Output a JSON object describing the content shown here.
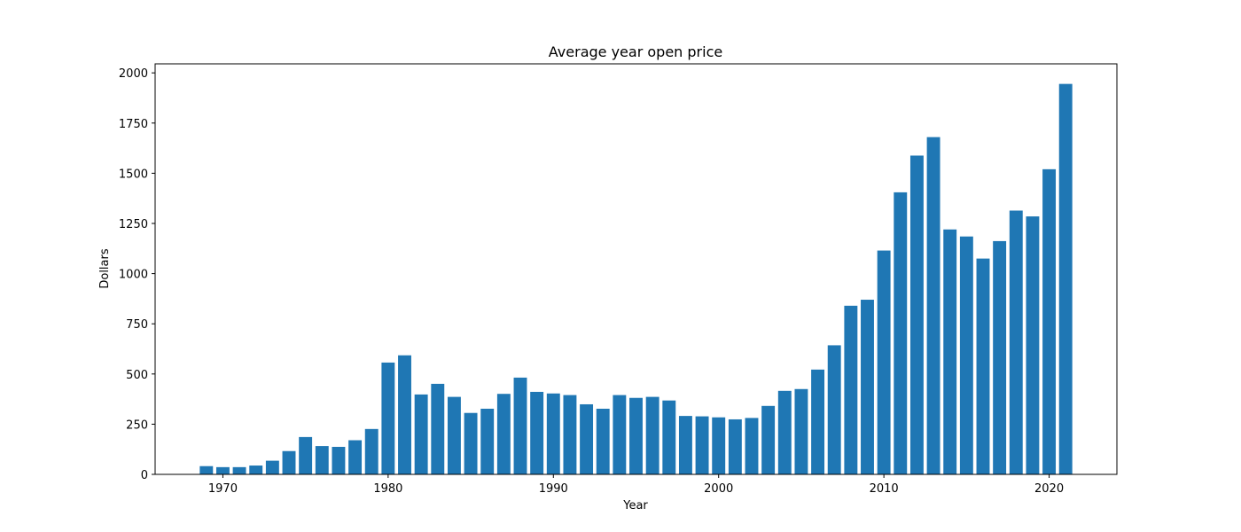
{
  "chart_data": {
    "type": "bar",
    "title": "Average year open price",
    "xlabel": "Year",
    "ylabel": "Dollars",
    "bar_color": "#1f77b4",
    "xlim": [
      1965.9,
      2024.1
    ],
    "ylim": [
      0,
      2045
    ],
    "x_ticks": [
      1970,
      1980,
      1990,
      2000,
      2010,
      2020
    ],
    "y_ticks": [
      0,
      250,
      500,
      750,
      1000,
      1250,
      1500,
      1750,
      2000
    ],
    "grid": false,
    "legend": "none",
    "x": [
      1969,
      1970,
      1971,
      1972,
      1973,
      1974,
      1975,
      1976,
      1977,
      1978,
      1979,
      1980,
      1981,
      1982,
      1983,
      1984,
      1985,
      1986,
      1987,
      1988,
      1989,
      1990,
      1991,
      1992,
      1993,
      1994,
      1995,
      1996,
      1997,
      1998,
      1999,
      2000,
      2001,
      2002,
      2003,
      2004,
      2005,
      2006,
      2007,
      2008,
      2009,
      2010,
      2011,
      2012,
      2013,
      2014,
      2015,
      2016,
      2017,
      2018,
      2019,
      2020,
      2021
    ],
    "values": [
      41,
      36,
      36,
      44,
      68,
      116,
      186,
      141,
      137,
      170,
      226,
      557,
      593,
      398,
      451,
      386,
      306,
      327,
      401,
      482,
      411,
      403,
      395,
      349,
      327,
      395,
      381,
      386,
      368,
      291,
      289,
      284,
      274,
      281,
      341,
      416,
      425,
      522,
      643,
      840,
      870,
      1115,
      1405,
      1588,
      1680,
      1220,
      1185,
      1075,
      1162,
      1314,
      1285,
      1520,
      1945
    ]
  }
}
